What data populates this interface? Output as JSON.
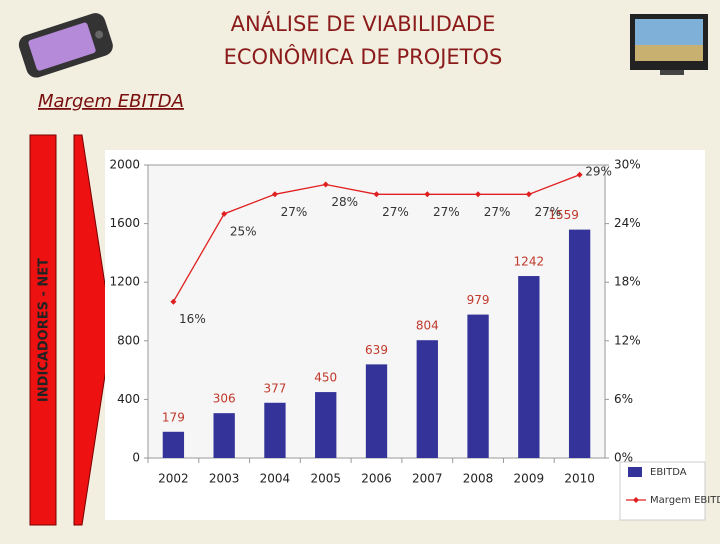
{
  "header": {
    "title_lines": [
      "ANÁLISE DE VIABILIDADE",
      "ECONÔMICA DE PROJETOS"
    ],
    "subtitle": "Margem EBITDA",
    "side_label": "INDICADORES - NET"
  },
  "chart_data": {
    "type": "bar-line",
    "categories": [
      "2002",
      "2003",
      "2004",
      "2005",
      "2006",
      "2007",
      "2008",
      "2009",
      "2010"
    ],
    "series": [
      {
        "name": "EBITDA",
        "type": "bar",
        "color": "#333399",
        "axis": "y",
        "values": [
          179,
          306,
          377,
          450,
          639,
          804,
          979,
          1242,
          1559
        ]
      },
      {
        "name": "Margem EBITDA",
        "type": "line",
        "color": "#e02020",
        "axis": "y2",
        "values": [
          16,
          25,
          27,
          28,
          27,
          27,
          27,
          27,
          29
        ],
        "value_labels": [
          "16%",
          "25%",
          "27%",
          "28%",
          "27%",
          "27%",
          "27%",
          "27%",
          "29%"
        ]
      }
    ],
    "ylim": [
      0,
      2000
    ],
    "yticks": [
      0,
      400,
      800,
      1200,
      1600,
      2000
    ],
    "y2lim": [
      0,
      30
    ],
    "y2ticks": [
      {
        "value": 0,
        "label": "0%"
      },
      {
        "value": 6,
        "label": "6%"
      },
      {
        "value": 12,
        "label": "12%"
      },
      {
        "value": 18,
        "label": "18%"
      },
      {
        "value": 24,
        "label": "24%"
      },
      {
        "value": 30,
        "label": "30%"
      }
    ],
    "legend": "bottom-right"
  }
}
